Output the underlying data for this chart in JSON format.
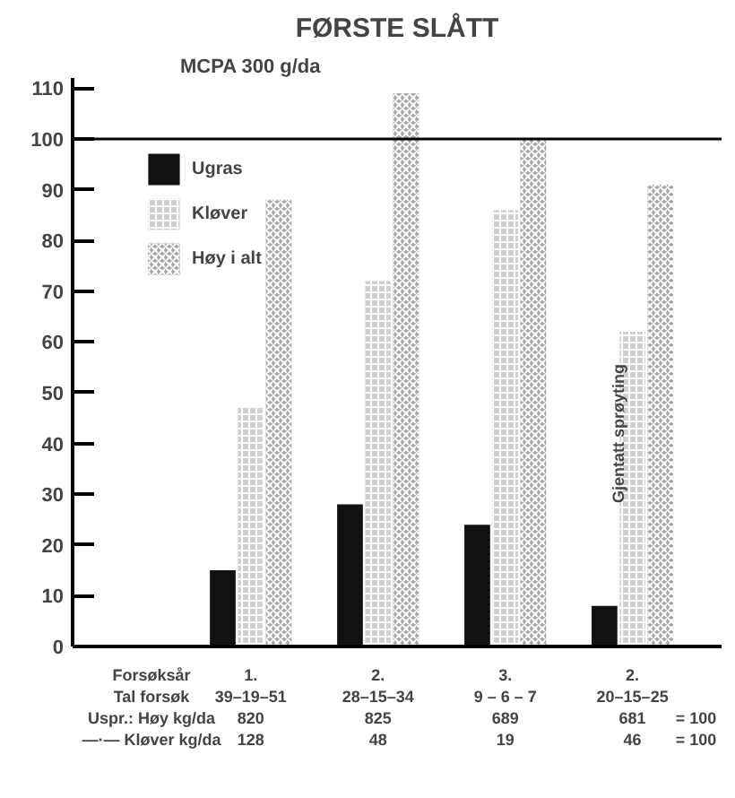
{
  "chart_data": {
    "type": "bar",
    "title": "FØRSTE SLÅTT",
    "subtitle": "MCPA 300 g/da",
    "categories": [
      "1.\n39–19–51\n820\n128",
      "2.\n28–15–34\n825\n48",
      "3.\n9 – 6 – 7\n689\n19",
      "2.\n20–15–25\n681\n46"
    ],
    "series": [
      {
        "name": "Ugras",
        "color": "#111111",
        "values": [
          15,
          28,
          24,
          8
        ]
      },
      {
        "name": "Kløver",
        "color": "#d0d0d0",
        "values": [
          47,
          72,
          86,
          62
        ]
      },
      {
        "name": "Høy i alt",
        "color": "#a8a8a8",
        "values": [
          88,
          109,
          100,
          91
        ]
      }
    ],
    "ylim": [
      0,
      112
    ],
    "yticks": [
      0,
      10,
      20,
      30,
      40,
      50,
      60,
      70,
      80,
      90,
      100,
      110
    ],
    "ref_lines": [
      {
        "axis": "y",
        "value": 100,
        "color": "#000000"
      }
    ],
    "annotations": [
      "Gjentatt sprøyting",
      "Forsøksår\nTal forsøk\nUspr.: Høy kg/da\n—·— Kløver kg/da",
      "\n\n= 100\n= 100"
    ],
    "legend": "top left",
    "grid": false
  }
}
